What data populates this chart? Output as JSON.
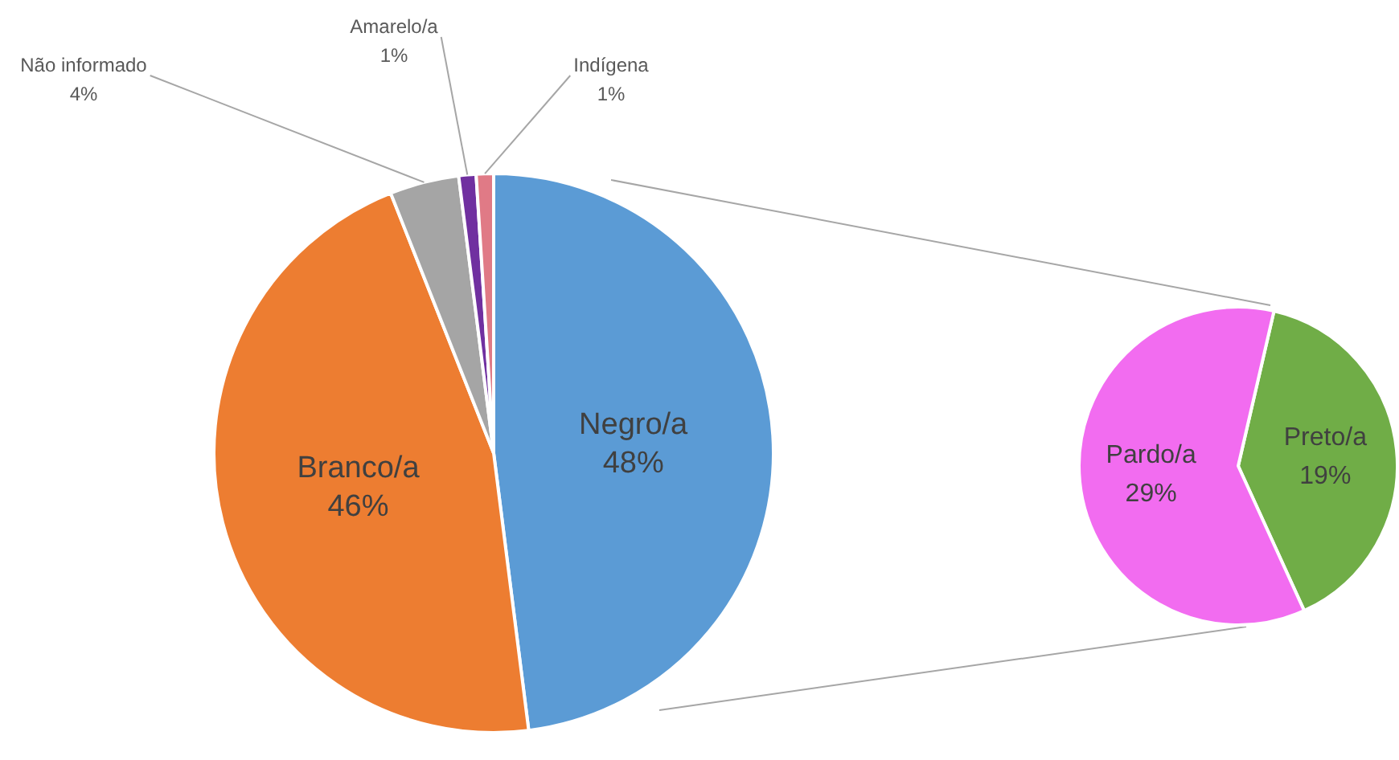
{
  "chart_data": [
    {
      "type": "pie",
      "categories": [
        "Negro/a",
        "Branco/a",
        "Não informado",
        "Amarelo/a",
        "Indígena"
      ],
      "values": [
        48,
        46,
        4,
        1,
        1
      ],
      "colors": [
        "#5b9bd5",
        "#ed7d31",
        "#a5a5a5",
        "#7030a0",
        "#e07a86"
      ],
      "value_labels": [
        "48%",
        "46%",
        "4%",
        "1%",
        "1%"
      ]
    },
    {
      "type": "pie",
      "categories": [
        "Preto/a",
        "Pardo/a"
      ],
      "values": [
        19,
        29
      ],
      "colors": [
        "#70ad47",
        "#f26cf0"
      ],
      "value_labels": [
        "19%",
        "29%"
      ]
    }
  ]
}
